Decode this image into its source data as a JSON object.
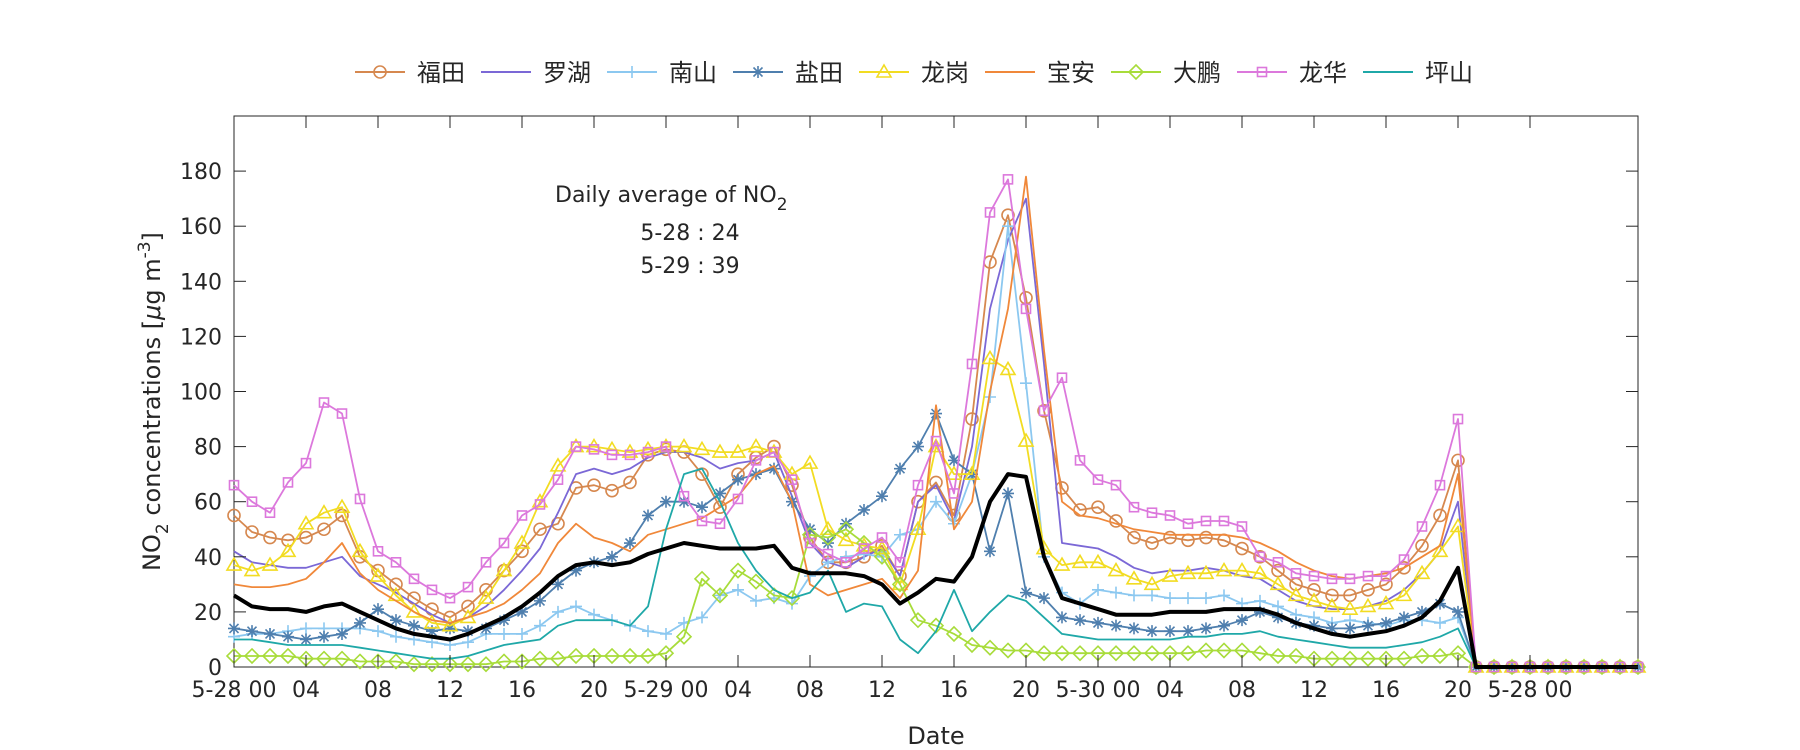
{
  "chart_data": {
    "type": "line",
    "xlabel": "Date",
    "ylabel": {
      "main": "NO",
      "sub": "2",
      "rest": " concentrations [",
      "mu": "μ",
      "unit": "g m",
      "sup": "-3",
      "close": "]"
    },
    "ylim": [
      0,
      200
    ],
    "yticks": [
      0,
      20,
      40,
      60,
      80,
      100,
      120,
      140,
      160,
      180
    ],
    "xlim": [
      0,
      78
    ],
    "xticks": [
      {
        "at": 0,
        "label": "5-28 00"
      },
      {
        "at": 4,
        "label": "04"
      },
      {
        "at": 8,
        "label": "08"
      },
      {
        "at": 12,
        "label": "12"
      },
      {
        "at": 16,
        "label": "16"
      },
      {
        "at": 20,
        "label": "20"
      },
      {
        "at": 24,
        "label": "5-29 00"
      },
      {
        "at": 28,
        "label": "04"
      },
      {
        "at": 32,
        "label": "08"
      },
      {
        "at": 36,
        "label": "12"
      },
      {
        "at": 40,
        "label": "16"
      },
      {
        "at": 44,
        "label": "20"
      },
      {
        "at": 48,
        "label": "5-30 00"
      },
      {
        "at": 52,
        "label": "04"
      },
      {
        "at": 56,
        "label": "08"
      },
      {
        "at": 60,
        "label": "12"
      },
      {
        "at": 64,
        "label": "16"
      },
      {
        "at": 68,
        "label": "20"
      },
      {
        "at": 72,
        "label": "5-28 00"
      }
    ],
    "grid": false,
    "legend_position": "top",
    "annotation": {
      "line1": "Daily average of NO",
      "line1_sub": "2",
      "line2": "5-28 : 24",
      "line3": "5-29 : 39"
    },
    "series": [
      {
        "name": "福田",
        "color": "#D6884F",
        "marker": "circle",
        "values": [
          55,
          49,
          47,
          46,
          47,
          50,
          55,
          40,
          35,
          30,
          25,
          21,
          18,
          22,
          28,
          35,
          42,
          50,
          52,
          65,
          66,
          64,
          67,
          77,
          79,
          78,
          70,
          58,
          70,
          76,
          80,
          66,
          47,
          38,
          38,
          40,
          44,
          33,
          60,
          67,
          55,
          90,
          147,
          164,
          134,
          93,
          65,
          57,
          58,
          53,
          47,
          45,
          47,
          46,
          47,
          46,
          43,
          40,
          35,
          30,
          28,
          26,
          26,
          28,
          30,
          36,
          44,
          55,
          75
        ]
      },
      {
        "name": "罗湖",
        "color": "#7B68D6",
        "marker": "none",
        "values": [
          42,
          38,
          37,
          36,
          36,
          38,
          40,
          33,
          30,
          27,
          23,
          19,
          16,
          18,
          22,
          28,
          35,
          43,
          56,
          70,
          72,
          70,
          72,
          76,
          78,
          78,
          76,
          72,
          74,
          75,
          78,
          62,
          45,
          38,
          36,
          40,
          43,
          33,
          60,
          66,
          53,
          80,
          130,
          155,
          170,
          110,
          45,
          44,
          43,
          40,
          36,
          34,
          35,
          35,
          36,
          35,
          33,
          32,
          28,
          24,
          22,
          21,
          21,
          22,
          24,
          28,
          34,
          42,
          60
        ]
      },
      {
        "name": "南山",
        "color": "#8CC8F0",
        "marker": "plus",
        "values": [
          11,
          12,
          12,
          13,
          14,
          14,
          14,
          14,
          13,
          11,
          10,
          9,
          8,
          9,
          12,
          12,
          12,
          15,
          20,
          22,
          19,
          17,
          15,
          13,
          12,
          16,
          18,
          26,
          28,
          24,
          25,
          23,
          33,
          38,
          40,
          41,
          40,
          48,
          50,
          60,
          52,
          70,
          98,
          160,
          103,
          40,
          27,
          23,
          28,
          27,
          26,
          26,
          25,
          25,
          25,
          26,
          23,
          24,
          22,
          19,
          18,
          16,
          17,
          16,
          15,
          17,
          17,
          16,
          18
        ]
      },
      {
        "name": "盐田",
        "color": "#4F7FAE",
        "marker": "star",
        "values": [
          14,
          13,
          12,
          11,
          10,
          11,
          12,
          16,
          21,
          17,
          15,
          13,
          14,
          13,
          14,
          17,
          20,
          24,
          30,
          35,
          38,
          40,
          45,
          55,
          60,
          60,
          58,
          63,
          68,
          70,
          72,
          60,
          50,
          45,
          52,
          57,
          62,
          72,
          80,
          92,
          75,
          70,
          42,
          63,
          27,
          25,
          18,
          17,
          16,
          15,
          14,
          13,
          13,
          13,
          14,
          15,
          17,
          20,
          18,
          16,
          15,
          14,
          14,
          15,
          16,
          18,
          20,
          23,
          20
        ]
      },
      {
        "name": "龙岗",
        "color": "#F2DC22",
        "marker": "triangle",
        "values": [
          37,
          35,
          37,
          42,
          52,
          56,
          58,
          42,
          33,
          26,
          20,
          16,
          15,
          18,
          25,
          35,
          45,
          60,
          73,
          80,
          80,
          79,
          78,
          79,
          80,
          80,
          79,
          78,
          78,
          80,
          78,
          70,
          74,
          50,
          46,
          44,
          43,
          30,
          50,
          80,
          70,
          70,
          112,
          108,
          82,
          43,
          37,
          38,
          38,
          35,
          32,
          30,
          33,
          34,
          34,
          35,
          35,
          34,
          30,
          26,
          24,
          22,
          21,
          22,
          23,
          26,
          34,
          42,
          51
        ]
      },
      {
        "name": "宝安",
        "color": "#F0883A",
        "marker": "none",
        "values": [
          30,
          29,
          29,
          30,
          32,
          38,
          45,
          34,
          28,
          24,
          20,
          17,
          16,
          18,
          20,
          23,
          28,
          34,
          45,
          52,
          47,
          45,
          42,
          48,
          50,
          52,
          54,
          58,
          62,
          70,
          73,
          60,
          30,
          26,
          28,
          30,
          32,
          25,
          35,
          95,
          50,
          60,
          100,
          130,
          178,
          115,
          60,
          55,
          54,
          52,
          50,
          49,
          48,
          48,
          48,
          48,
          47,
          45,
          42,
          38,
          35,
          33,
          32,
          33,
          34,
          36,
          40,
          44,
          70
        ]
      },
      {
        "name": "大鹏",
        "color": "#A8DC3A",
        "marker": "diamond",
        "values": [
          4,
          4,
          4,
          4,
          3,
          3,
          3,
          2,
          2,
          2,
          1,
          1,
          1,
          1,
          1,
          2,
          2,
          3,
          3,
          4,
          4,
          4,
          4,
          4,
          5,
          11,
          32,
          26,
          35,
          31,
          26,
          25,
          48,
          47,
          50,
          45,
          40,
          30,
          17,
          15,
          12,
          8,
          7,
          6,
          6,
          5,
          5,
          5,
          5,
          5,
          5,
          5,
          5,
          5,
          6,
          6,
          6,
          5,
          4,
          4,
          3,
          3,
          3,
          3,
          3,
          3,
          4,
          4,
          5
        ]
      },
      {
        "name": "龙华",
        "color": "#DC78DC",
        "marker": "square",
        "values": [
          66,
          60,
          56,
          67,
          74,
          96,
          92,
          61,
          42,
          38,
          32,
          28,
          25,
          29,
          38,
          45,
          55,
          59,
          68,
          80,
          79,
          77,
          77,
          78,
          80,
          62,
          53,
          52,
          61,
          75,
          78,
          68,
          45,
          41,
          38,
          43,
          47,
          38,
          66,
          82,
          63,
          110,
          165,
          177,
          130,
          93,
          105,
          75,
          68,
          66,
          58,
          56,
          55,
          52,
          53,
          53,
          51,
          40,
          38,
          34,
          33,
          32,
          32,
          33,
          33,
          39,
          51,
          66,
          90
        ]
      },
      {
        "name": "坪山",
        "color": "#1FA8A8",
        "marker": "none",
        "values": [
          10,
          10,
          9,
          8,
          8,
          8,
          8,
          7,
          6,
          5,
          4,
          3,
          3,
          4,
          6,
          8,
          9,
          10,
          15,
          17,
          17,
          17,
          15,
          22,
          50,
          70,
          72,
          60,
          45,
          35,
          28,
          25,
          27,
          35,
          20,
          23,
          22,
          10,
          5,
          13,
          28,
          13,
          20,
          26,
          24,
          18,
          12,
          11,
          10,
          10,
          10,
          10,
          10,
          11,
          11,
          12,
          12,
          13,
          11,
          10,
          9,
          8,
          7,
          7,
          7,
          8,
          9,
          11,
          14
        ]
      },
      {
        "name": "",
        "color": "#000000",
        "marker": "none",
        "values": [
          26,
          22,
          21,
          21,
          20,
          22,
          23,
          20,
          17,
          14,
          12,
          11,
          10,
          12,
          15,
          18,
          22,
          27,
          33,
          37,
          38,
          37,
          38,
          41,
          43,
          45,
          44,
          43,
          43,
          43,
          44,
          36,
          34,
          34,
          34,
          33,
          30,
          23,
          27,
          32,
          31,
          40,
          60,
          70,
          69,
          40,
          25,
          23,
          21,
          19,
          19,
          19,
          20,
          20,
          20,
          21,
          21,
          21,
          19,
          16,
          14,
          12,
          11,
          12,
          13,
          15,
          18,
          24,
          36
        ]
      }
    ],
    "zeros_start": 69,
    "zeros_end": 78
  }
}
